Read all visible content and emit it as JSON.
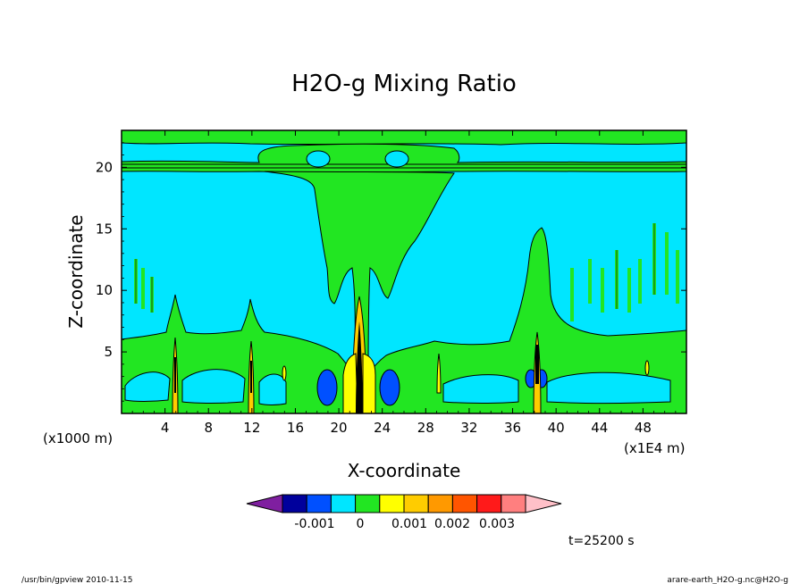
{
  "chart_data": {
    "type": "heatmap",
    "title": "H2O-g Mixing Ratio",
    "xlabel": "X-coordinate",
    "ylabel": "Z-coordinate",
    "x_unit_left": "(x1000 m)",
    "x_unit_right": "(x1E4 m)",
    "xlim": [
      0,
      52
    ],
    "ylim": [
      0,
      23
    ],
    "x_ticks": [
      4,
      8,
      12,
      16,
      20,
      24,
      28,
      32,
      36,
      40,
      44,
      48
    ],
    "y_ticks": [
      5,
      10,
      15,
      20
    ],
    "colorbar": {
      "colors": [
        "#7f1fa0",
        "#00009c",
        "#0050ff",
        "#00e6ff",
        "#22e622",
        "#ffff00",
        "#ffcc00",
        "#ff9900",
        "#ff5500",
        "#ff1a1a",
        "#ff7f7f",
        "#ffc0c8"
      ],
      "labels": [
        "-0.001",
        "0",
        "0.001",
        "0.002",
        "0.003"
      ]
    },
    "time_label": "t=25200 s"
  },
  "footer": {
    "left": "/usr/bin/gpview  2010-11-15",
    "right": "arare-earth_H2O-g.nc@H2O-g"
  }
}
